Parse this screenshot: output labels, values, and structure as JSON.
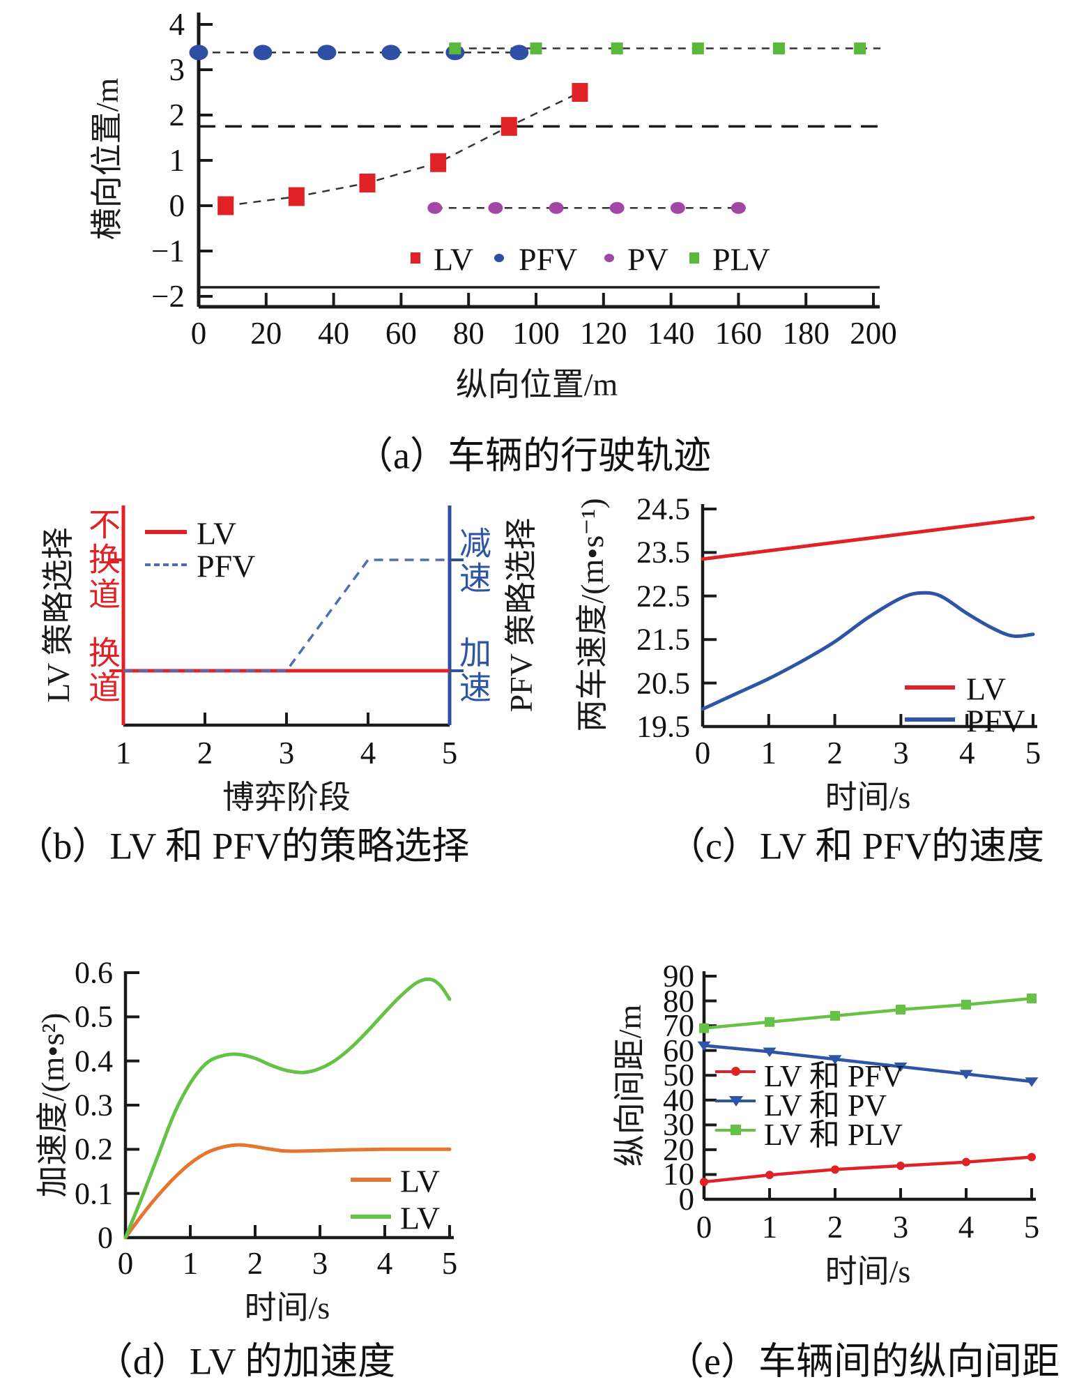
{
  "figure": {
    "captions": {
      "a": "（a）车辆的行驶轨迹",
      "b": "（b）LV 和 PFV的策略选择",
      "c": "（c）LV 和 PFV的速度",
      "d": "（d）LV 的加速度",
      "e": "（e）车辆间的纵向间距"
    }
  },
  "chart_data": [
    {
      "id": "a",
      "type": "scatter",
      "title": "（a）车辆的行驶轨迹",
      "xlabel": "纵向位置/m",
      "ylabel": "横向位置/m",
      "xlim": [
        0,
        200
      ],
      "ylim": [
        -2.5,
        4.3
      ],
      "xticks": [
        0,
        20,
        40,
        60,
        80,
        100,
        120,
        140,
        160,
        180,
        200
      ],
      "yticks": [
        4,
        3,
        2,
        1,
        0,
        -1,
        -2
      ],
      "grid": false,
      "legend_position": "inside lower right",
      "series": [
        {
          "name": "LV",
          "marker": "square",
          "color": "#e02227",
          "connector": "dashed",
          "points": [
            [
              8,
              0
            ],
            [
              29,
              0.2
            ],
            [
              50,
              0.5
            ],
            [
              71,
              0.95
            ],
            [
              92,
              1.75
            ],
            [
              113,
              2.5
            ]
          ]
        },
        {
          "name": "PFV",
          "marker": "ellipse",
          "color": "#2e4fa3",
          "connector": "dashed",
          "points": [
            [
              0,
              3.38
            ],
            [
              19,
              3.38
            ],
            [
              38,
              3.38
            ],
            [
              57,
              3.38
            ],
            [
              76,
              3.38
            ],
            [
              95,
              3.38
            ]
          ]
        },
        {
          "name": "PV",
          "marker": "ellipse",
          "color": "#a347a6",
          "connector": "dashed",
          "points": [
            [
              70,
              -0.05
            ],
            [
              88,
              -0.05
            ],
            [
              106,
              -0.05
            ],
            [
              124,
              -0.05
            ],
            [
              142,
              -0.05
            ],
            [
              160,
              -0.05
            ]
          ]
        },
        {
          "name": "PLV",
          "marker": "square",
          "color": "#58b93a",
          "connector": "dashed",
          "connector_extend_to_x": 200,
          "points": [
            [
              76,
              3.47
            ],
            [
              100,
              3.47
            ],
            [
              124,
              3.47
            ],
            [
              148,
              3.47
            ],
            [
              172,
              3.47
            ],
            [
              196,
              3.47
            ]
          ]
        }
      ],
      "reference_lines": [
        {
          "y": 1.75,
          "style": "dashed",
          "color": "#1a1a1a"
        },
        {
          "y": -1.8,
          "style": "solid",
          "color": "#1a1a1a"
        }
      ]
    },
    {
      "id": "b",
      "type": "line",
      "title": "（b）LV 和 PFV的策略选择",
      "xlabel": "博弈阶段",
      "ylabel_left": "LV 策略选择",
      "ylabel_right": "PFV 策略选择",
      "xticks": [
        1,
        2,
        3,
        4,
        5
      ],
      "y_levels_left": {
        "top": "不换道",
        "bottom": "换道"
      },
      "y_levels_right": {
        "top": "减速",
        "bottom": "加速"
      },
      "level_encoding": "0 = 换道/加速（下）, 1 = 不换道/减速（上）",
      "series": [
        {
          "name": "LV",
          "style": "solid",
          "color": "#e02227",
          "points": [
            [
              1,
              0
            ],
            [
              5,
              0
            ]
          ]
        },
        {
          "name": "PFV",
          "style": "dashed",
          "color": "#4f6cb4",
          "points": [
            [
              1,
              0
            ],
            [
              3,
              0
            ],
            [
              4,
              1
            ],
            [
              5,
              1
            ]
          ]
        }
      ],
      "legend_position": "upper left inside"
    },
    {
      "id": "c",
      "type": "line",
      "title": "（c）LV 和 PFV的速度",
      "xlabel": "时间/s",
      "ylabel": "两车速度/(m•s⁻¹)",
      "xlim": [
        0,
        5
      ],
      "ylim": [
        19.5,
        24.5
      ],
      "xticks": [
        0,
        1,
        2,
        3,
        4,
        5
      ],
      "yticks": [
        19.5,
        20.5,
        21.5,
        22.5,
        23.5,
        24.5
      ],
      "series": [
        {
          "name": "LV",
          "color": "#e02227",
          "points": [
            [
              0,
              23.35
            ],
            [
              1,
              23.54
            ],
            [
              2,
              23.73
            ],
            [
              3,
              23.92
            ],
            [
              4,
              24.11
            ],
            [
              5,
              24.3
            ]
          ]
        },
        {
          "name": "PFV",
          "color": "#2e55a5",
          "points": [
            [
              0,
              19.9
            ],
            [
              0.5,
              20.25
            ],
            [
              1,
              20.6
            ],
            [
              1.5,
              21.0
            ],
            [
              2,
              21.45
            ],
            [
              2.5,
              22.0
            ],
            [
              3,
              22.45
            ],
            [
              3.3,
              22.57
            ],
            [
              3.6,
              22.5
            ],
            [
              4,
              22.1
            ],
            [
              4.4,
              21.75
            ],
            [
              4.7,
              21.58
            ],
            [
              5,
              21.62
            ]
          ]
        }
      ],
      "legend_position": "lower right inside"
    },
    {
      "id": "d",
      "type": "line",
      "title": "（d）LV 的加速度",
      "xlabel": "时间/s",
      "ylabel": "加速度/(m•s²)",
      "xlim": [
        0,
        5
      ],
      "ylim": [
        0,
        0.6
      ],
      "xticks": [
        0,
        1,
        2,
        3,
        4,
        5
      ],
      "yticks": [
        0,
        0.1,
        0.2,
        0.3,
        0.4,
        0.5,
        0.6
      ],
      "series": [
        {
          "name": "LV",
          "color": "#e4762f",
          "points": [
            [
              0,
              0
            ],
            [
              0.25,
              0.05
            ],
            [
              0.5,
              0.095
            ],
            [
              0.75,
              0.135
            ],
            [
              1,
              0.168
            ],
            [
              1.25,
              0.192
            ],
            [
              1.5,
              0.205
            ],
            [
              1.75,
              0.21
            ],
            [
              2,
              0.206
            ],
            [
              2.25,
              0.2
            ],
            [
              2.5,
              0.196
            ],
            [
              3,
              0.197
            ],
            [
              3.5,
              0.199
            ],
            [
              4,
              0.2
            ],
            [
              4.5,
              0.2
            ],
            [
              5,
              0.2
            ]
          ]
        },
        {
          "name": "LV",
          "color": "#66c247",
          "points": [
            [
              0,
              0
            ],
            [
              0.25,
              0.09
            ],
            [
              0.5,
              0.185
            ],
            [
              0.75,
              0.28
            ],
            [
              1,
              0.35
            ],
            [
              1.25,
              0.395
            ],
            [
              1.5,
              0.412
            ],
            [
              1.75,
              0.415
            ],
            [
              2,
              0.406
            ],
            [
              2.25,
              0.39
            ],
            [
              2.5,
              0.378
            ],
            [
              2.75,
              0.374
            ],
            [
              3,
              0.383
            ],
            [
              3.25,
              0.403
            ],
            [
              3.5,
              0.433
            ],
            [
              3.75,
              0.47
            ],
            [
              4,
              0.51
            ],
            [
              4.25,
              0.548
            ],
            [
              4.5,
              0.578
            ],
            [
              4.7,
              0.585
            ],
            [
              4.85,
              0.572
            ],
            [
              5,
              0.54
            ]
          ]
        }
      ],
      "legend_position": "right inside"
    },
    {
      "id": "e",
      "type": "line",
      "title": "（e）车辆间的纵向间距",
      "xlabel": "时间/s",
      "ylabel": "纵向间距/m",
      "xlim": [
        0,
        5
      ],
      "ylim": [
        0,
        90
      ],
      "xticks": [
        0,
        1,
        2,
        3,
        4,
        5
      ],
      "yticks": [
        0,
        10,
        20,
        30,
        40,
        50,
        60,
        70,
        80,
        90
      ],
      "series": [
        {
          "name": "LV 和 PFV",
          "color": "#e02227",
          "marker": "dot",
          "points": [
            [
              0,
              7
            ],
            [
              1,
              9.8
            ],
            [
              2,
              12
            ],
            [
              3,
              13.5
            ],
            [
              4,
              15
            ],
            [
              5,
              17
            ]
          ]
        },
        {
          "name": "LV 和 PV",
          "color": "#2e55a5",
          "marker": "triangle-down",
          "points": [
            [
              0,
              62
            ],
            [
              1,
              59.5
            ],
            [
              2,
              56.5
            ],
            [
              3,
              53.5
            ],
            [
              4,
              50.5
            ],
            [
              5,
              47.5
            ]
          ]
        },
        {
          "name": "LV 和 PLV",
          "color": "#66c247",
          "marker": "square",
          "points": [
            [
              0,
              69
            ],
            [
              1,
              71.5
            ],
            [
              2,
              74
            ],
            [
              3,
              76.5
            ],
            [
              4,
              78.5
            ],
            [
              5,
              81
            ]
          ]
        }
      ],
      "legend_position": "center left inside"
    }
  ]
}
